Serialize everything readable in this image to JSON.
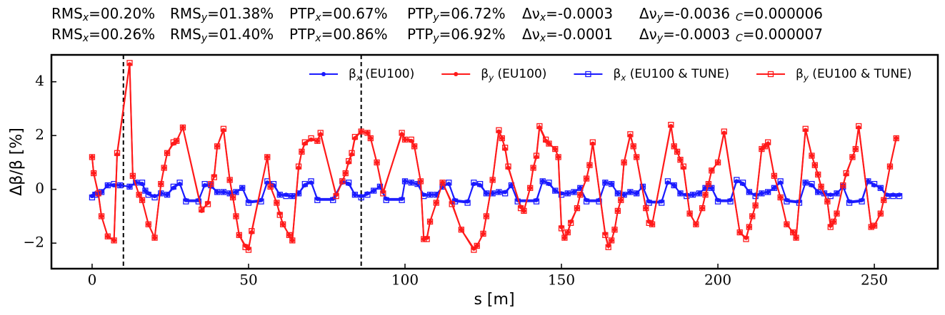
{
  "chart_data": {
    "type": "line",
    "annotations": [
      [
        "RMSx=00.20%",
        "RMSy=01.38%",
        "PTPx=00.67%",
        "PTPy=06.72%",
        "Δνx=-0.0003",
        "Δνy=-0.0036",
        "C=0.000006"
      ],
      [
        "RMSx=00.26%",
        "RMSy=01.40%",
        "PTPx=00.86%",
        "PTPy=06.92%",
        "Δνx=-0.0001",
        "Δνy=-0.0003",
        "C=0.000007"
      ]
    ],
    "xlabel": "s [m]",
    "ylabel": "Δβ/β [%]",
    "xlim": [
      -13,
      270.3
    ],
    "ylim": [
      -2.95,
      5
    ],
    "xticks": [
      0,
      50,
      100,
      150,
      200,
      250
    ],
    "yticks": [
      {
        "value": -2,
        "label": "−2"
      },
      0,
      2,
      4
    ],
    "vlines": [
      10,
      86
    ],
    "legend": "upper right",
    "series": [
      {
        "name": "βx (EU100)",
        "color": "#1a1aff",
        "marker": "circle",
        "x": [
          0,
          1,
          3,
          5,
          7,
          9,
          12,
          14,
          16,
          17,
          18,
          20,
          22,
          24,
          26,
          28,
          30,
          34,
          36,
          38,
          40,
          42,
          44,
          46,
          48,
          50,
          54,
          56,
          58,
          60,
          62,
          64,
          66,
          68,
          70,
          72,
          77,
          80,
          82,
          84,
          86,
          88,
          90,
          92,
          94,
          99,
          100,
          102,
          104,
          106,
          108,
          110,
          112,
          114,
          116,
          120,
          122,
          124,
          126,
          128,
          130,
          132,
          134,
          136,
          142,
          144,
          146,
          148,
          150,
          152,
          154,
          156,
          158,
          162,
          164,
          166,
          168,
          170,
          172,
          174,
          176,
          178,
          182,
          184,
          186,
          188,
          190,
          192,
          194,
          196,
          198,
          200,
          204,
          206,
          208,
          210,
          212,
          214,
          216,
          218,
          220,
          222,
          226,
          228,
          230,
          232,
          234,
          236,
          238,
          240,
          242,
          246,
          248,
          250,
          252,
          254,
          256,
          258
        ],
        "values": [
          -0.25,
          -0.15,
          -0.1,
          0.15,
          0.15,
          0.15,
          0.1,
          0.25,
          0.2,
          -0.05,
          -0.15,
          -0.25,
          -0.15,
          -0.2,
          0.05,
          0.2,
          -0.4,
          -0.4,
          0.15,
          0.1,
          -0.1,
          -0.1,
          -0.15,
          -0.1,
          0.05,
          -0.45,
          -0.4,
          0.25,
          0.15,
          -0.2,
          -0.2,
          -0.25,
          -0.15,
          0.15,
          0.25,
          -0.35,
          -0.35,
          0.25,
          0.2,
          -0.2,
          -0.25,
          -0.15,
          -0.05,
          0.1,
          -0.35,
          -0.35,
          0.3,
          0.25,
          0.2,
          -0.2,
          -0.2,
          -0.2,
          0.1,
          0.2,
          -0.4,
          -0.45,
          0.2,
          0.15,
          -0.15,
          -0.15,
          -0.1,
          -0.1,
          0.15,
          -0.4,
          -0.4,
          0.3,
          0.2,
          -0.05,
          -0.15,
          -0.15,
          -0.1,
          0.05,
          -0.4,
          -0.4,
          0.25,
          0.2,
          -0.15,
          -0.2,
          -0.1,
          -0.15,
          0.1,
          -0.45,
          -0.45,
          0.25,
          0.15,
          -0.15,
          -0.2,
          -0.2,
          -0.15,
          0.05,
          0.05,
          -0.4,
          -0.4,
          0.3,
          0.2,
          -0.1,
          -0.2,
          -0.15,
          -0.1,
          0.05,
          0.25,
          -0.4,
          -0.45,
          0.25,
          0.15,
          -0.1,
          -0.15,
          -0.2,
          -0.15,
          0.1,
          -0.45,
          -0.4,
          0.3,
          0.15,
          0.05,
          -0.2,
          -0.2,
          -0.2
        ]
      },
      {
        "name": "βy (EU100)",
        "color": "#ff1a1a",
        "marker": "circle",
        "x": [
          0,
          0.5,
          2,
          3,
          5,
          7,
          8,
          12,
          13,
          15,
          16,
          18,
          20,
          22,
          23,
          24,
          26,
          27,
          29,
          35,
          37,
          38,
          39,
          40,
          42,
          44,
          45,
          46,
          47,
          49,
          50,
          51,
          56,
          57,
          59,
          60,
          61,
          63,
          64,
          66,
          67,
          68,
          70,
          72,
          73,
          78,
          80,
          81,
          82,
          83,
          84,
          86,
          88,
          89,
          91,
          93,
          99,
          100,
          102,
          103,
          105,
          106,
          107,
          108,
          110,
          112,
          115,
          118,
          122,
          123,
          125,
          126,
          128,
          130,
          131,
          132,
          133,
          137,
          138,
          140,
          141,
          142,
          143,
          145,
          146,
          148,
          149,
          150,
          151,
          152,
          153,
          155,
          156,
          158,
          159,
          160,
          164,
          165,
          166,
          167,
          168,
          169,
          170,
          172,
          173,
          174,
          177,
          178,
          179,
          185,
          186,
          187,
          188,
          189,
          191,
          193,
          195,
          196,
          197,
          198,
          200,
          202,
          207,
          209,
          210,
          211,
          212,
          214,
          215,
          216,
          218,
          220,
          222,
          224,
          225,
          228,
          230,
          231,
          232,
          233,
          235,
          236,
          237,
          238,
          240,
          241,
          243,
          244,
          245,
          249,
          250,
          252,
          253,
          255,
          257
        ],
        "values": [
          1.2,
          0.6,
          -0.2,
          -1.0,
          -1.75,
          -1.9,
          1.3,
          4.65,
          0.5,
          -0.2,
          -0.4,
          -1.3,
          -1.8,
          0.2,
          0.8,
          1.35,
          1.7,
          1.8,
          2.3,
          -0.8,
          -0.5,
          0.2,
          0.5,
          1.6,
          2.2,
          0.35,
          -0.3,
          -1.0,
          -1.7,
          -2.1,
          -2.2,
          -1.6,
          1.2,
          0.1,
          -0.5,
          -0.9,
          -1.3,
          -1.7,
          -1.9,
          0.8,
          1.4,
          1.7,
          1.85,
          1.8,
          2.05,
          -0.2,
          0.3,
          0.6,
          1.0,
          1.3,
          1.9,
          2.15,
          2.1,
          1.9,
          1.0,
          -0.1,
          2.05,
          1.85,
          1.8,
          1.6,
          0.3,
          -1.85,
          -1.8,
          -1.2,
          -0.5,
          0.25,
          -0.5,
          -1.5,
          -2.2,
          -2.1,
          -1.65,
          -1.0,
          0.35,
          2.15,
          1.9,
          1.5,
          0.8,
          -0.65,
          -0.8,
          0.05,
          0.8,
          1.2,
          2.3,
          1.8,
          1.7,
          1.5,
          1.2,
          -1.4,
          -1.8,
          -1.6,
          -1.2,
          -0.7,
          -0.2,
          0.4,
          0.9,
          1.7,
          -1.65,
          -2.1,
          -1.9,
          -1.5,
          -0.8,
          -0.4,
          1.0,
          2.0,
          1.6,
          1.2,
          -0.7,
          -1.2,
          -1.3,
          2.35,
          1.6,
          1.4,
          1.1,
          0.8,
          -0.9,
          -1.3,
          -0.7,
          -0.2,
          0.2,
          0.7,
          1.0,
          2.1,
          -1.6,
          -1.8,
          -1.4,
          -1.0,
          -0.6,
          1.5,
          1.6,
          1.7,
          0.5,
          -0.3,
          -1.3,
          -1.6,
          -1.8,
          2.2,
          1.25,
          0.9,
          0.55,
          0.1,
          -0.45,
          -1.35,
          -1.2,
          -0.9,
          0.15,
          0.55,
          1.2,
          1.5,
          2.3,
          -1.4,
          -1.35,
          -0.9,
          -0.4,
          0.85,
          1.9
        ]
      },
      {
        "name": "βx (EU100 & TUNE)",
        "color": "#1a1aff",
        "marker": "square",
        "x": [
          0,
          1,
          3,
          5,
          7,
          9,
          12,
          14,
          16,
          17,
          18,
          20,
          22,
          24,
          26,
          28,
          30,
          34,
          36,
          38,
          40,
          42,
          44,
          46,
          48,
          50,
          54,
          56,
          58,
          60,
          62,
          64,
          66,
          68,
          70,
          72,
          77,
          80,
          82,
          84,
          86,
          88,
          90,
          92,
          94,
          99,
          100,
          102,
          104,
          106,
          108,
          110,
          112,
          114,
          116,
          120,
          122,
          124,
          126,
          128,
          130,
          132,
          134,
          136,
          142,
          144,
          146,
          148,
          150,
          152,
          154,
          156,
          158,
          162,
          164,
          166,
          168,
          170,
          172,
          174,
          176,
          178,
          182,
          184,
          186,
          188,
          190,
          192,
          194,
          196,
          198,
          200,
          204,
          206,
          208,
          210,
          212,
          214,
          216,
          218,
          220,
          222,
          226,
          228,
          230,
          232,
          234,
          236,
          238,
          240,
          242,
          246,
          248,
          250,
          252,
          254,
          256,
          258
        ],
        "values": [
          -0.3,
          -0.2,
          -0.1,
          0.15,
          0.2,
          0.15,
          0.1,
          0.25,
          0.25,
          -0.05,
          -0.2,
          -0.3,
          -0.15,
          -0.2,
          0.1,
          0.25,
          -0.45,
          -0.45,
          0.2,
          0.15,
          -0.1,
          -0.1,
          -0.15,
          -0.1,
          0.05,
          -0.5,
          -0.45,
          0.3,
          0.2,
          -0.2,
          -0.25,
          -0.25,
          -0.15,
          0.2,
          0.3,
          -0.4,
          -0.4,
          0.3,
          0.25,
          -0.2,
          -0.3,
          -0.2,
          -0.05,
          0.1,
          -0.4,
          -0.4,
          0.3,
          0.25,
          0.2,
          -0.25,
          -0.2,
          -0.2,
          0.1,
          0.25,
          -0.45,
          -0.5,
          0.25,
          0.2,
          -0.15,
          -0.15,
          -0.1,
          -0.15,
          0.15,
          -0.45,
          -0.45,
          0.3,
          0.25,
          -0.05,
          -0.2,
          -0.15,
          -0.1,
          0.05,
          -0.45,
          -0.45,
          0.25,
          0.2,
          -0.15,
          -0.2,
          -0.1,
          -0.15,
          0.1,
          -0.5,
          -0.5,
          0.3,
          0.15,
          -0.15,
          -0.25,
          -0.2,
          -0.15,
          0.05,
          0.05,
          -0.45,
          -0.45,
          0.35,
          0.25,
          -0.1,
          -0.25,
          -0.15,
          -0.1,
          0.05,
          0.3,
          -0.45,
          -0.5,
          0.25,
          0.2,
          -0.1,
          -0.15,
          -0.25,
          -0.15,
          0.1,
          -0.5,
          -0.45,
          0.3,
          0.2,
          0.05,
          -0.25,
          -0.25,
          -0.25
        ]
      },
      {
        "name": "βy (EU100 & TUNE)",
        "color": "#ff1a1a",
        "marker": "square",
        "x": [
          0,
          0.5,
          2,
          3,
          5,
          7,
          8,
          12,
          13,
          15,
          16,
          18,
          20,
          22,
          23,
          24,
          26,
          27,
          29,
          35,
          37,
          38,
          39,
          40,
          42,
          44,
          45,
          46,
          47,
          49,
          50,
          51,
          56,
          57,
          59,
          60,
          61,
          63,
          64,
          66,
          67,
          68,
          70,
          72,
          73,
          78,
          80,
          81,
          82,
          83,
          84,
          86,
          88,
          89,
          91,
          93,
          99,
          100,
          102,
          103,
          105,
          106,
          107,
          108,
          110,
          112,
          115,
          118,
          122,
          123,
          125,
          126,
          128,
          130,
          131,
          132,
          133,
          137,
          138,
          140,
          141,
          142,
          143,
          145,
          146,
          148,
          149,
          150,
          151,
          152,
          153,
          155,
          156,
          158,
          159,
          160,
          164,
          165,
          166,
          167,
          168,
          169,
          170,
          172,
          173,
          174,
          177,
          178,
          179,
          185,
          186,
          187,
          188,
          189,
          191,
          193,
          195,
          196,
          197,
          198,
          200,
          202,
          207,
          209,
          210,
          211,
          212,
          214,
          215,
          216,
          218,
          220,
          222,
          224,
          225,
          228,
          230,
          231,
          232,
          233,
          235,
          236,
          237,
          238,
          240,
          241,
          243,
          244,
          245,
          249,
          250,
          252,
          253,
          255,
          257
        ],
        "values": [
          1.2,
          0.6,
          -0.15,
          -1.0,
          -1.75,
          -1.9,
          1.35,
          4.7,
          0.5,
          -0.2,
          -0.4,
          -1.3,
          -1.8,
          0.2,
          0.8,
          1.35,
          1.75,
          1.8,
          2.3,
          -0.75,
          -0.55,
          0.2,
          0.45,
          1.6,
          2.25,
          0.35,
          -0.3,
          -1.0,
          -1.7,
          -2.15,
          -2.25,
          -1.55,
          1.2,
          0.1,
          -0.5,
          -0.95,
          -1.3,
          -1.7,
          -1.9,
          0.85,
          1.4,
          1.75,
          1.9,
          1.8,
          2.1,
          -0.25,
          0.3,
          0.6,
          1.05,
          1.35,
          1.95,
          2.15,
          2.1,
          1.9,
          1.0,
          -0.15,
          2.1,
          1.85,
          1.85,
          1.6,
          0.3,
          -1.85,
          -1.85,
          -1.2,
          -0.5,
          0.25,
          -0.55,
          -1.5,
          -2.25,
          -2.1,
          -1.65,
          -1.0,
          0.35,
          2.2,
          1.9,
          1.55,
          0.85,
          -0.7,
          -0.8,
          0.05,
          0.8,
          1.25,
          2.35,
          1.85,
          1.7,
          1.5,
          1.2,
          -1.45,
          -1.8,
          -1.6,
          -1.25,
          -0.7,
          -0.2,
          0.4,
          0.9,
          1.75,
          -1.7,
          -2.15,
          -1.9,
          -1.5,
          -0.8,
          -0.4,
          1.0,
          2.05,
          1.6,
          1.2,
          -0.7,
          -1.25,
          -1.3,
          2.4,
          1.6,
          1.4,
          1.1,
          0.85,
          -0.9,
          -1.3,
          -0.7,
          -0.2,
          0.2,
          0.7,
          1.0,
          2.15,
          -1.6,
          -1.85,
          -1.4,
          -1.0,
          -0.6,
          1.5,
          1.6,
          1.75,
          0.5,
          -0.3,
          -1.3,
          -1.6,
          -1.8,
          2.25,
          1.25,
          0.9,
          0.55,
          0.1,
          -0.45,
          -1.4,
          -1.2,
          -0.9,
          0.15,
          0.6,
          1.2,
          1.5,
          2.35,
          -1.4,
          -1.35,
          -0.9,
          -0.4,
          0.85,
          1.9
        ]
      }
    ]
  }
}
